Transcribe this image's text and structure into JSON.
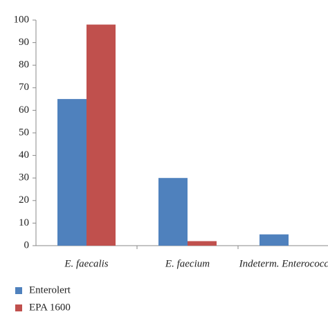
{
  "chart_data": {
    "type": "bar",
    "categories": [
      "E. faecalis",
      "E. faecium",
      "Indeterm. Enterococcus"
    ],
    "series": [
      {
        "name": "Enterolert",
        "color": "#4f81bd",
        "values": [
          65,
          30,
          5
        ]
      },
      {
        "name": "EPA 1600",
        "color": "#c0504d",
        "values": [
          98,
          2,
          0
        ]
      }
    ],
    "ylim": [
      0,
      100
    ],
    "yticks": [
      0,
      10,
      20,
      30,
      40,
      50,
      60,
      70,
      80,
      90,
      100
    ],
    "grid": false
  }
}
